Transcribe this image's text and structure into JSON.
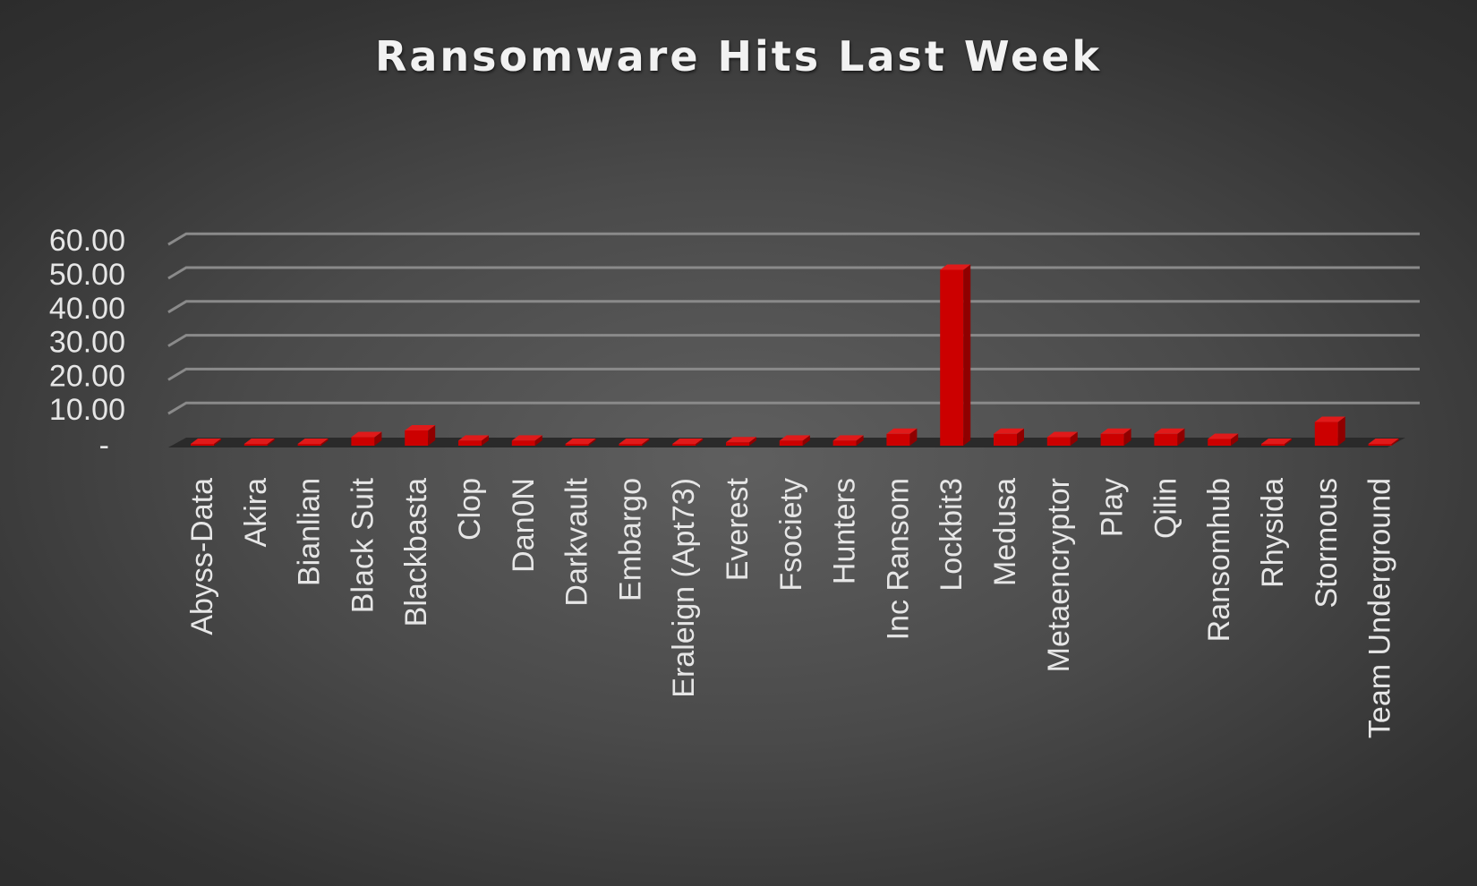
{
  "chart_data": {
    "type": "bar",
    "title": "Ransomware Hits Last Week",
    "xlabel": "",
    "ylabel": "",
    "ylim": [
      0,
      60
    ],
    "yticks": [
      0,
      10,
      20,
      30,
      40,
      50,
      60
    ],
    "ytick_labels": [
      "-",
      "10.00",
      "20.00",
      "30.00",
      "40.00",
      "50.00",
      "60.00"
    ],
    "grid": true,
    "legend": "none",
    "bar_color": "#cc0000",
    "categories": [
      "Abyss-Data",
      "Akira",
      "Bianlian",
      "Black Suit",
      "Blackbasta",
      "Clop",
      "Dan0N",
      "Darkvault",
      "Embargo",
      "Eraleign (Apt73)",
      "Everest",
      "Fsociety",
      "Hunters",
      "Inc Ransom",
      "Lockbit3",
      "Medusa",
      "Metaencryptor",
      "Play",
      "Qilin",
      "Ransomhub",
      "Rhysida",
      "Stormous",
      "Team Underground"
    ],
    "values": [
      0.2,
      0,
      0.5,
      2.5,
      4.5,
      1.5,
      1.5,
      0.5,
      0,
      0,
      1,
      1.5,
      1.5,
      3.5,
      52,
      3.5,
      2.5,
      3.5,
      3.5,
      2,
      0,
      7,
      0
    ]
  }
}
